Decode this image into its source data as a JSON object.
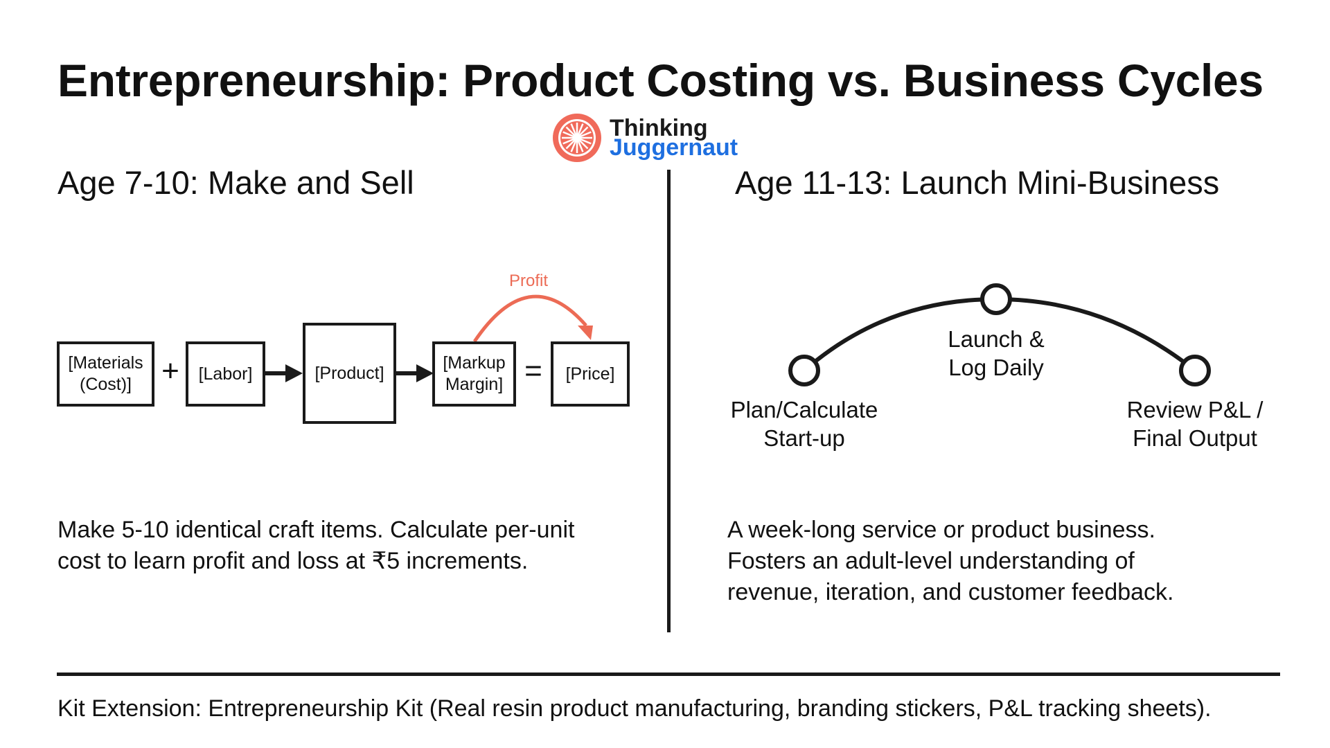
{
  "title": "Entrepreneurship: Product Costing vs. Business Cycles",
  "logo": {
    "word1": "Thinking",
    "word2": "Juggernaut",
    "icon": "wheel-logo-icon",
    "colors": {
      "ring": "#f06a5a",
      "word2": "#1e6fe0"
    }
  },
  "left": {
    "heading": "Age 7-10: Make and Sell",
    "formula": {
      "boxes": [
        "[Materials\n(Cost)]",
        "[Labor]",
        "[Product]",
        "[Markup\nMargin]",
        "[Price]"
      ],
      "plus": "+",
      "equals": "=",
      "profit_label": "Profit"
    },
    "description": "Make 5-10 identical craft items. Calculate per-unit\ncost to learn profit and loss at ₹5 increments."
  },
  "right": {
    "heading": "Age 11-13: Launch Mini-Business",
    "cycle": {
      "start_label": "Plan/Calculate\nStart-up",
      "middle_label": "Launch &\nLog Daily",
      "end_label": "Review P&L /\nFinal Output"
    },
    "description": "A week-long service or product business.\nFosters an adult-level understanding of\nrevenue, iteration, and customer feedback."
  },
  "footer": "Kit Extension: Entrepreneurship Kit (Real resin product manufacturing, branding stickers, P&L tracking sheets).",
  "colors": {
    "accent": "#ec6b55",
    "ink": "#1a1a1a"
  }
}
